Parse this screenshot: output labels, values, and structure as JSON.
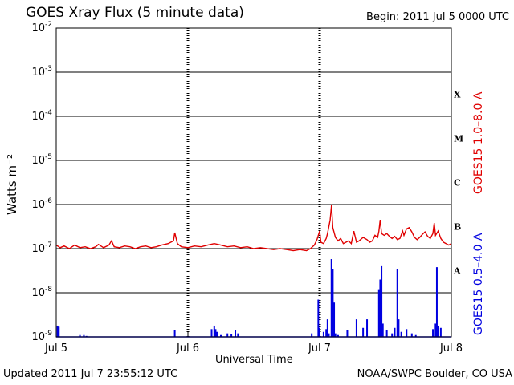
{
  "chart_data": {
    "type": "line",
    "title": "GOES Xray Flux (5 minute data)",
    "begin": "Begin:  2011 Jul 5 0000 UTC",
    "updated": "Updated 2011 Jul  7 23:55:12 UTC",
    "credit": "NOAA/SWPC Boulder, CO USA",
    "xlabel": "Universal Time",
    "ylabel": "Watts m⁻²",
    "yscale": "log",
    "ylim": [
      1e-09,
      0.01
    ],
    "xlim_days": [
      0,
      3
    ],
    "x_ticks": [
      {
        "day": 0,
        "label": "Jul 5"
      },
      {
        "day": 1,
        "label": "Jul 6"
      },
      {
        "day": 2,
        "label": "Jul 7"
      },
      {
        "day": 3,
        "label": "Jul 8"
      }
    ],
    "y_ticks": [
      {
        "exp": -2,
        "label": "10",
        "sup": "-2"
      },
      {
        "exp": -3,
        "label": "10",
        "sup": "-3"
      },
      {
        "exp": -4,
        "label": "10",
        "sup": "-4"
      },
      {
        "exp": -5,
        "label": "10",
        "sup": "-5"
      },
      {
        "exp": -6,
        "label": "10",
        "sup": "-6"
      },
      {
        "exp": -7,
        "label": "10",
        "sup": "-7"
      },
      {
        "exp": -8,
        "label": "10",
        "sup": "-8"
      },
      {
        "exp": -9,
        "label": "10",
        "sup": "-9"
      }
    ],
    "flare_classes": [
      {
        "label": "X",
        "exp": -3.5
      },
      {
        "label": "M",
        "exp": -4.5
      },
      {
        "label": "C",
        "exp": -5.5
      },
      {
        "label": "B",
        "exp": -6.5
      },
      {
        "label": "A",
        "exp": -7.5
      }
    ],
    "grid": true,
    "series": [
      {
        "name": "GOES15 1.0–8.0 A",
        "color": "#e00000",
        "points": [
          [
            0.0,
            1.2e-07
          ],
          [
            0.03,
            1.05e-07
          ],
          [
            0.06,
            1.15e-07
          ],
          [
            0.1,
            1e-07
          ],
          [
            0.14,
            1.2e-07
          ],
          [
            0.18,
            1.05e-07
          ],
          [
            0.22,
            1.1e-07
          ],
          [
            0.26,
            1e-07
          ],
          [
            0.3,
            1.1e-07
          ],
          [
            0.32,
            1.25e-07
          ],
          [
            0.36,
            1.05e-07
          ],
          [
            0.4,
            1.2e-07
          ],
          [
            0.42,
            1.5e-07
          ],
          [
            0.44,
            1.1e-07
          ],
          [
            0.48,
            1.05e-07
          ],
          [
            0.52,
            1.15e-07
          ],
          [
            0.56,
            1.1e-07
          ],
          [
            0.6,
            1e-07
          ],
          [
            0.64,
            1.1e-07
          ],
          [
            0.68,
            1.15e-07
          ],
          [
            0.72,
            1.05e-07
          ],
          [
            0.76,
            1.1e-07
          ],
          [
            0.8,
            1.2e-07
          ],
          [
            0.85,
            1.3e-07
          ],
          [
            0.89,
            1.5e-07
          ],
          [
            0.9,
            2.3e-07
          ],
          [
            0.92,
            1.3e-07
          ],
          [
            0.95,
            1.1e-07
          ],
          [
            1.0,
            1.05e-07
          ],
          [
            1.05,
            1.15e-07
          ],
          [
            1.1,
            1.1e-07
          ],
          [
            1.15,
            1.2e-07
          ],
          [
            1.2,
            1.3e-07
          ],
          [
            1.25,
            1.2e-07
          ],
          [
            1.3,
            1.1e-07
          ],
          [
            1.35,
            1.15e-07
          ],
          [
            1.4,
            1.05e-07
          ],
          [
            1.45,
            1.1e-07
          ],
          [
            1.5,
            1e-07
          ],
          [
            1.55,
            1.05e-07
          ],
          [
            1.6,
            1e-07
          ],
          [
            1.65,
            9.5e-08
          ],
          [
            1.7,
            1e-07
          ],
          [
            1.75,
            9.5e-08
          ],
          [
            1.8,
            9e-08
          ],
          [
            1.85,
            9.5e-08
          ],
          [
            1.9,
            9e-08
          ],
          [
            1.93,
            1e-07
          ],
          [
            1.96,
            1.2e-07
          ],
          [
            1.98,
            1.6e-07
          ],
          [
            2.0,
            2.5e-07
          ],
          [
            2.01,
            1.4e-07
          ],
          [
            2.03,
            1.3e-07
          ],
          [
            2.05,
            1.7e-07
          ],
          [
            2.06,
            2.2e-07
          ],
          [
            2.08,
            4.5e-07
          ],
          [
            2.09,
            9.8e-07
          ],
          [
            2.1,
            3e-07
          ],
          [
            2.12,
            1.8e-07
          ],
          [
            2.14,
            1.5e-07
          ],
          [
            2.16,
            1.7e-07
          ],
          [
            2.18,
            1.3e-07
          ],
          [
            2.2,
            1.4e-07
          ],
          [
            2.22,
            1.5e-07
          ],
          [
            2.24,
            1.3e-07
          ],
          [
            2.26,
            2.5e-07
          ],
          [
            2.28,
            1.4e-07
          ],
          [
            2.3,
            1.5e-07
          ],
          [
            2.33,
            1.8e-07
          ],
          [
            2.36,
            1.6e-07
          ],
          [
            2.38,
            1.4e-07
          ],
          [
            2.4,
            1.5e-07
          ],
          [
            2.42,
            2e-07
          ],
          [
            2.44,
            1.8e-07
          ],
          [
            2.45,
            2.5e-07
          ],
          [
            2.46,
            4.5e-07
          ],
          [
            2.47,
            2.2e-07
          ],
          [
            2.49,
            2e-07
          ],
          [
            2.51,
            2.2e-07
          ],
          [
            2.53,
            1.9e-07
          ],
          [
            2.55,
            1.7e-07
          ],
          [
            2.57,
            1.9e-07
          ],
          [
            2.59,
            1.6e-07
          ],
          [
            2.61,
            1.7e-07
          ],
          [
            2.63,
            2.5e-07
          ],
          [
            2.64,
            2e-07
          ],
          [
            2.66,
            2.8e-07
          ],
          [
            2.68,
            3e-07
          ],
          [
            2.7,
            2.4e-07
          ],
          [
            2.72,
            1.8e-07
          ],
          [
            2.74,
            1.6e-07
          ],
          [
            2.76,
            1.8e-07
          ],
          [
            2.78,
            2.1e-07
          ],
          [
            2.8,
            2.4e-07
          ],
          [
            2.82,
            1.9e-07
          ],
          [
            2.84,
            1.7e-07
          ],
          [
            2.86,
            2.2e-07
          ],
          [
            2.87,
            3.8e-07
          ],
          [
            2.88,
            2e-07
          ],
          [
            2.9,
            2.5e-07
          ],
          [
            2.92,
            1.7e-07
          ],
          [
            2.94,
            1.4e-07
          ],
          [
            2.96,
            1.3e-07
          ],
          [
            2.98,
            1.2e-07
          ],
          [
            3.0,
            1.3e-07
          ]
        ]
      },
      {
        "name": "GOES15 0.5–4.0 A",
        "color": "#0000e0",
        "baseline": 1e-09,
        "spikes": [
          [
            0.01,
            1.8e-09
          ],
          [
            0.02,
            1.7e-09
          ],
          [
            0.18,
            1.1e-09
          ],
          [
            0.21,
            1.1e-09
          ],
          [
            0.23,
            1.05e-09
          ],
          [
            0.9,
            1.4e-09
          ],
          [
            1.18,
            1.5e-09
          ],
          [
            1.2,
            1.8e-09
          ],
          [
            1.21,
            1.5e-09
          ],
          [
            1.22,
            1.3e-09
          ],
          [
            1.25,
            1.1e-09
          ],
          [
            1.3,
            1.2e-09
          ],
          [
            1.33,
            1.15e-09
          ],
          [
            1.36,
            1.4e-09
          ],
          [
            1.38,
            1.2e-09
          ],
          [
            1.94,
            1.2e-09
          ],
          [
            1.99,
            7e-09
          ],
          [
            2.0,
            1.6e-09
          ],
          [
            2.03,
            1.3e-09
          ],
          [
            2.05,
            1.5e-09
          ],
          [
            2.06,
            2.5e-09
          ],
          [
            2.07,
            1.2e-09
          ],
          [
            2.09,
            5.8e-08
          ],
          [
            2.1,
            3.5e-08
          ],
          [
            2.11,
            6e-09
          ],
          [
            2.12,
            1.2e-09
          ],
          [
            2.14,
            1.1e-09
          ],
          [
            2.21,
            1.4e-09
          ],
          [
            2.28,
            2.5e-09
          ],
          [
            2.33,
            1.6e-09
          ],
          [
            2.36,
            2.5e-09
          ],
          [
            2.45,
            1.2e-08
          ],
          [
            2.46,
            2e-08
          ],
          [
            2.47,
            4e-08
          ],
          [
            2.48,
            2e-09
          ],
          [
            2.51,
            1.4e-09
          ],
          [
            2.55,
            1.2e-09
          ],
          [
            2.57,
            1.6e-09
          ],
          [
            2.59,
            3.5e-08
          ],
          [
            2.6,
            2.5e-09
          ],
          [
            2.62,
            1.3e-09
          ],
          [
            2.66,
            1.5e-09
          ],
          [
            2.7,
            1.2e-09
          ],
          [
            2.73,
            1.1e-09
          ],
          [
            2.86,
            1.5e-09
          ],
          [
            2.88,
            2e-09
          ],
          [
            2.89,
            3.8e-08
          ],
          [
            2.9,
            1.8e-09
          ],
          [
            2.92,
            1.6e-09
          ]
        ]
      }
    ]
  }
}
